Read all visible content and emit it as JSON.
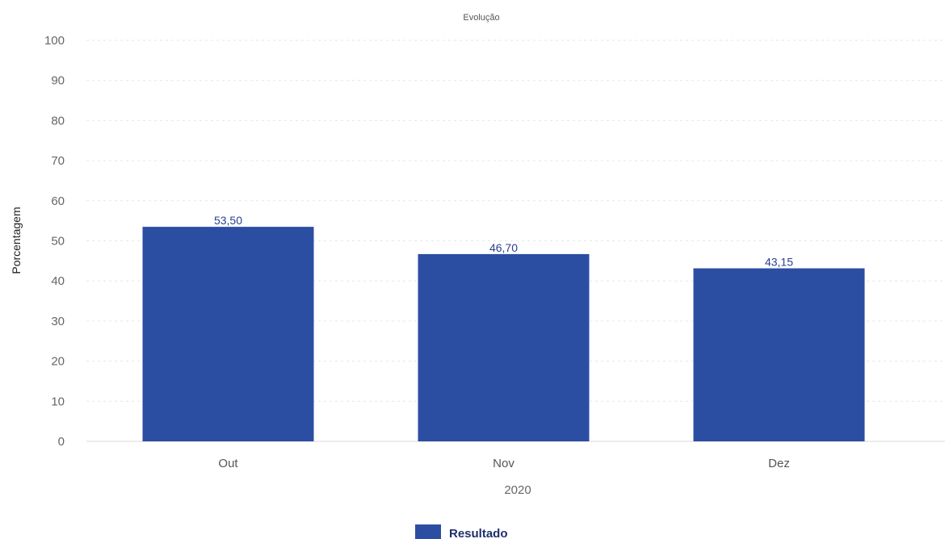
{
  "chart_data": {
    "type": "bar",
    "title": "Evolução",
    "categories": [
      "Out",
      "Nov",
      "Dez"
    ],
    "series": [
      {
        "name": "Resultado",
        "values": [
          53.5,
          46.7,
          43.15
        ],
        "labels": [
          "53,50",
          "46,70",
          "43,15"
        ],
        "color": "#2b4ea3"
      }
    ],
    "xlabel": "2020",
    "ylabel": "Porcentagem",
    "ylim": [
      0,
      100
    ],
    "yticks": [
      0,
      10,
      20,
      30,
      40,
      50,
      60,
      70,
      80,
      90,
      100
    ],
    "grid": true,
    "legend_position": "bottom-center"
  }
}
